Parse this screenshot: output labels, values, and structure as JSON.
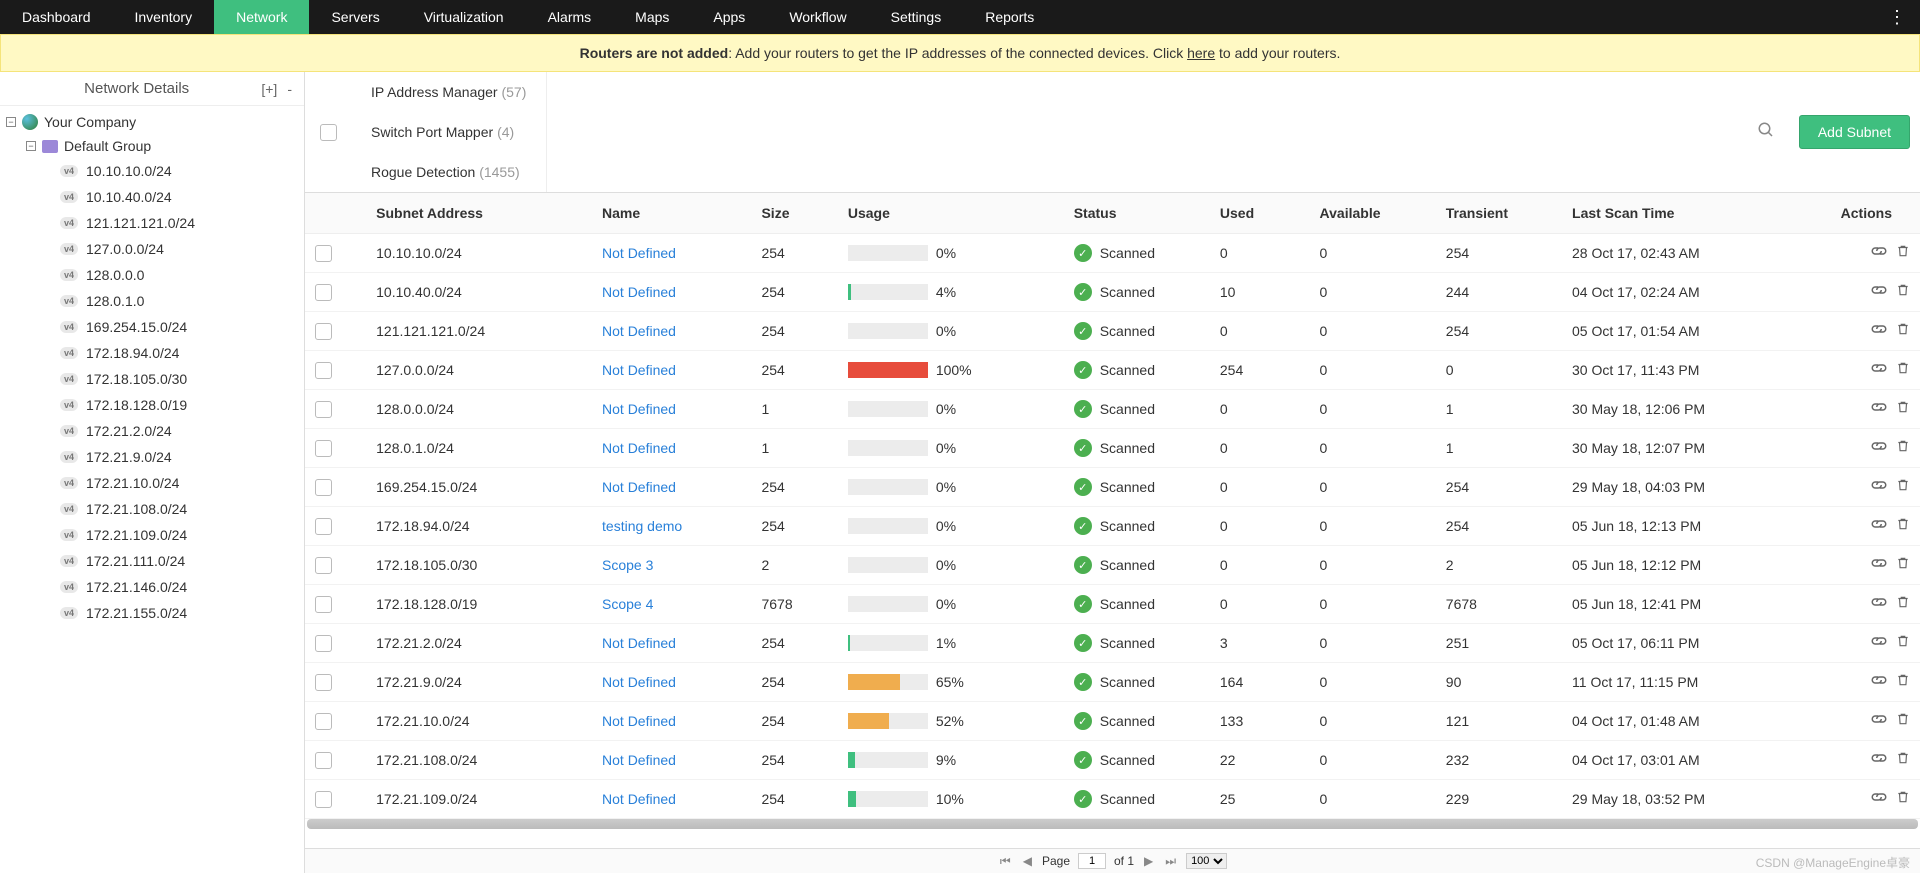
{
  "nav": {
    "items": [
      "Dashboard",
      "Inventory",
      "Network",
      "Servers",
      "Virtualization",
      "Alarms",
      "Maps",
      "Apps",
      "Workflow",
      "Settings",
      "Reports"
    ],
    "active_index": 2
  },
  "banner": {
    "bold": "Routers are not added",
    "text1": ": Add your routers to get the IP addresses of the connected devices. Click ",
    "link": "here",
    "text2": " to add your routers."
  },
  "sidebar": {
    "title": "Network Details",
    "add": "[+]",
    "minus": "-",
    "root": "Your Company",
    "group": "Default Group",
    "subnets": [
      "10.10.10.0/24",
      "10.10.40.0/24",
      "121.121.121.0/24",
      "127.0.0.0/24",
      "128.0.0.0",
      "128.0.1.0",
      "169.254.15.0/24",
      "172.18.94.0/24",
      "172.18.105.0/30",
      "172.18.128.0/19",
      "172.21.2.0/24",
      "172.21.9.0/24",
      "172.21.10.0/24",
      "172.21.108.0/24",
      "172.21.109.0/24",
      "172.21.111.0/24",
      "172.21.146.0/24",
      "172.21.155.0/24"
    ]
  },
  "tabs": [
    {
      "label": "IP Address Manager",
      "count": "(57)"
    },
    {
      "label": "Switch Port Mapper",
      "count": "(4)"
    },
    {
      "label": "Rogue Detection",
      "count": "(1455)"
    }
  ],
  "add_subnet": "Add Subnet",
  "columns": [
    "Subnet Address",
    "Name",
    "Size",
    "Usage",
    "Status",
    "Used",
    "Available",
    "Transient",
    "Last Scan Time",
    "Actions"
  ],
  "status_label": "Scanned",
  "usage_colors": {
    "low": "#3fbf7f",
    "mid": "#f0ad4e",
    "high": "#e74c3c",
    "bg": "#ececec"
  },
  "rows": [
    {
      "subnet": "10.10.10.0/24",
      "name": "Not Defined",
      "size": "254",
      "pct": 0,
      "used": "0",
      "avail": "0",
      "trans": "254",
      "scan": "28 Oct 17, 02:43 AM"
    },
    {
      "subnet": "10.10.40.0/24",
      "name": "Not Defined",
      "size": "254",
      "pct": 4,
      "used": "10",
      "avail": "0",
      "trans": "244",
      "scan": "04 Oct 17, 02:24 AM"
    },
    {
      "subnet": "121.121.121.0/24",
      "name": "Not Defined",
      "size": "254",
      "pct": 0,
      "used": "0",
      "avail": "0",
      "trans": "254",
      "scan": "05 Oct 17, 01:54 AM"
    },
    {
      "subnet": "127.0.0.0/24",
      "name": "Not Defined",
      "size": "254",
      "pct": 100,
      "used": "254",
      "avail": "0",
      "trans": "0",
      "scan": "30 Oct 17, 11:43 PM"
    },
    {
      "subnet": "128.0.0.0/24",
      "name": "Not Defined",
      "size": "1",
      "pct": 0,
      "used": "0",
      "avail": "0",
      "trans": "1",
      "scan": "30 May 18, 12:06 PM"
    },
    {
      "subnet": "128.0.1.0/24",
      "name": "Not Defined",
      "size": "1",
      "pct": 0,
      "used": "0",
      "avail": "0",
      "trans": "1",
      "scan": "30 May 18, 12:07 PM"
    },
    {
      "subnet": "169.254.15.0/24",
      "name": "Not Defined",
      "size": "254",
      "pct": 0,
      "used": "0",
      "avail": "0",
      "trans": "254",
      "scan": "29 May 18, 04:03 PM"
    },
    {
      "subnet": "172.18.94.0/24",
      "name": "testing demo",
      "size": "254",
      "pct": 0,
      "used": "0",
      "avail": "0",
      "trans": "254",
      "scan": "05 Jun 18, 12:13 PM"
    },
    {
      "subnet": "172.18.105.0/30",
      "name": "Scope 3",
      "size": "2",
      "pct": 0,
      "used": "0",
      "avail": "0",
      "trans": "2",
      "scan": "05 Jun 18, 12:12 PM"
    },
    {
      "subnet": "172.18.128.0/19",
      "name": "Scope 4",
      "size": "7678",
      "pct": 0,
      "used": "0",
      "avail": "0",
      "trans": "7678",
      "scan": "05 Jun 18, 12:41 PM"
    },
    {
      "subnet": "172.21.2.0/24",
      "name": "Not Defined",
      "size": "254",
      "pct": 1,
      "used": "3",
      "avail": "0",
      "trans": "251",
      "scan": "05 Oct 17, 06:11 PM"
    },
    {
      "subnet": "172.21.9.0/24",
      "name": "Not Defined",
      "size": "254",
      "pct": 65,
      "used": "164",
      "avail": "0",
      "trans": "90",
      "scan": "11 Oct 17, 11:15 PM"
    },
    {
      "subnet": "172.21.10.0/24",
      "name": "Not Defined",
      "size": "254",
      "pct": 52,
      "used": "133",
      "avail": "0",
      "trans": "121",
      "scan": "04 Oct 17, 01:48 AM"
    },
    {
      "subnet": "172.21.108.0/24",
      "name": "Not Defined",
      "size": "254",
      "pct": 9,
      "used": "22",
      "avail": "0",
      "trans": "232",
      "scan": "04 Oct 17, 03:01 AM"
    },
    {
      "subnet": "172.21.109.0/24",
      "name": "Not Defined",
      "size": "254",
      "pct": 10,
      "used": "25",
      "avail": "0",
      "trans": "229",
      "scan": "29 May 18, 03:52 PM"
    }
  ],
  "pager": {
    "page_label": "Page",
    "page": "1",
    "of": "of 1",
    "size": "100"
  },
  "watermark": "CSDN @ManageEngine卓豪"
}
